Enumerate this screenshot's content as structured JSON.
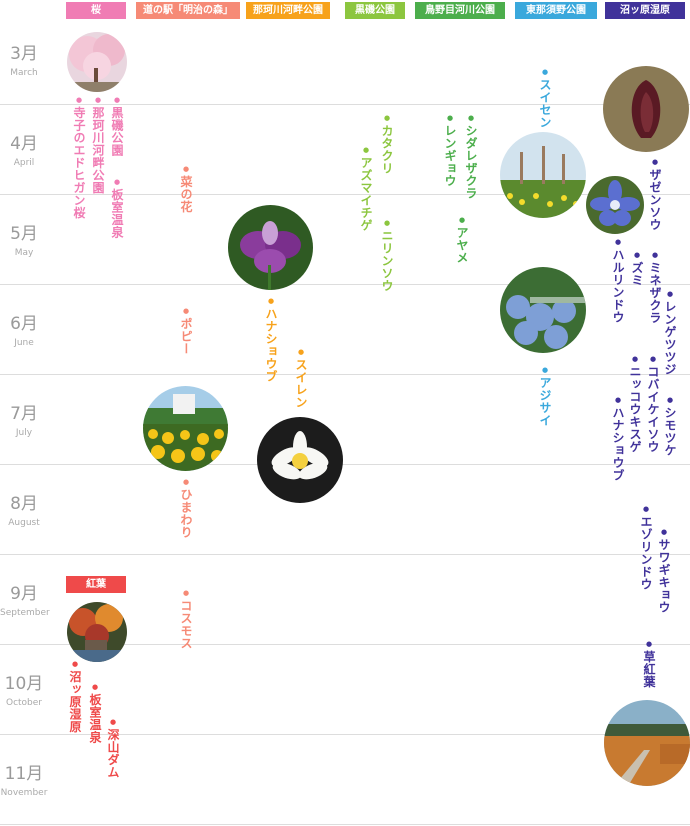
{
  "headers": [
    {
      "label": "桜",
      "color": "#f07cb4"
    },
    {
      "label": "道の駅「明治の森」",
      "color": "#f68a76"
    },
    {
      "label": "那珂川河畔公園",
      "color": "#f7a21b"
    },
    {
      "label": "黒磯公園",
      "color": "#8cc63f"
    },
    {
      "label": "鳥野目河川公園",
      "color": "#4cae4c"
    },
    {
      "label": "東那須野公園",
      "color": "#3aa8dc"
    },
    {
      "label": "沼ッ原湿原",
      "color": "#40329a"
    }
  ],
  "autumn_header": {
    "label": "紅葉",
    "color": "#ef4a4a"
  },
  "months": [
    {
      "jp": "3月",
      "en": "March"
    },
    {
      "jp": "4月",
      "en": "April"
    },
    {
      "jp": "5月",
      "en": "May"
    },
    {
      "jp": "6月",
      "en": "June"
    },
    {
      "jp": "7月",
      "en": "July"
    },
    {
      "jp": "8月",
      "en": "August"
    },
    {
      "jp": "9月",
      "en": "September"
    },
    {
      "jp": "10月",
      "en": "October"
    },
    {
      "jp": "11月",
      "en": "November"
    }
  ],
  "flowers": {
    "sakura": [
      "寺子のエドヒガン桜",
      "那珂川河畔公園",
      "黒磯公園",
      "板室温泉"
    ],
    "meiji": [
      "菜の花",
      "ポピー",
      "ひまわり",
      "コスモス"
    ],
    "nakagawa": [
      "ハナショウブ",
      "スイレン"
    ],
    "kuroiso": [
      "アズマイチゲ",
      "カタクリ",
      "ニリンソウ"
    ],
    "torinome": [
      "レンギョウ",
      "シダレザクラ",
      "アヤメ"
    ],
    "higashinasuno": [
      "スイセン",
      "アジサイ"
    ],
    "numappara": [
      "ザゼンソウ",
      "ハルリンドウ",
      "ズミ",
      "ミネザクラ",
      "レンゲツツジ",
      "ニッコウキスゲ",
      "コバイケイソウ",
      "シモツケ",
      "ハナショウブ",
      "エゾリンドウ",
      "サワギキョウ",
      "草紅葉"
    ],
    "autumn": [
      "沼ッ原湿原",
      "板室温泉",
      "深山ダム"
    ]
  },
  "colors": {
    "sakura_text": "#f07cb4",
    "meiji_text": "#f68a76",
    "nakagawa_text": "#f7a21b",
    "kuroiso_text": "#8cc63f",
    "torinome_text": "#4cae4c",
    "higashinasuno_text": "#3aa8dc",
    "numappara_text": "#40329a",
    "autumn_text": "#ef4a4a"
  }
}
